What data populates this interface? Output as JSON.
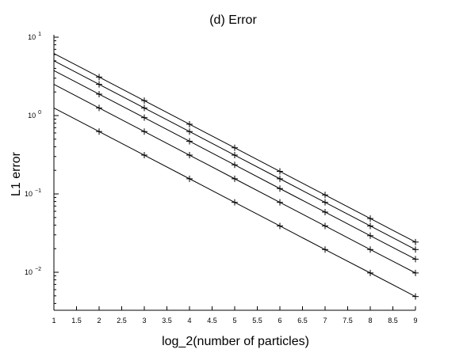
{
  "chart_data": {
    "type": "line",
    "title": "(d) Error",
    "xlabel": "log_2(number of particles)",
    "ylabel": "L1 error",
    "xlim": [
      1,
      9
    ],
    "ylim": [
      0.003,
      10
    ],
    "yscale": "log",
    "grid": false,
    "legend": "none",
    "x_ticks": [
      1,
      1.5,
      2,
      2.5,
      3,
      3.5,
      4,
      4.5,
      5,
      5.5,
      6,
      6.5,
      7,
      7.5,
      8,
      8.5,
      9
    ],
    "x_tick_labels": [
      "1",
      "1.5",
      "2",
      "2.5",
      "3",
      "3.5",
      "4",
      "4.5",
      "5",
      "5.5",
      "6",
      "6.5",
      "7",
      "7.5",
      "8",
      "8.5",
      "9"
    ],
    "y_ticks": [
      {
        "value": 10,
        "base": "10",
        "exp": "1"
      },
      {
        "value": 1,
        "base": "10",
        "exp": "0"
      },
      {
        "value": 0.1,
        "base": "10",
        "exp": "−1"
      },
      {
        "value": 0.01,
        "base": "10",
        "exp": "−2"
      }
    ],
    "x": [
      1,
      2,
      3,
      4,
      5,
      6,
      7,
      8,
      9
    ],
    "series": [
      {
        "values": [
          6.2,
          3.1,
          1.55,
          0.775,
          0.388,
          0.194,
          0.097,
          0.0485,
          0.0243
        ]
      },
      {
        "values": [
          5.0,
          2.5,
          1.25,
          0.625,
          0.3125,
          0.156,
          0.078,
          0.039,
          0.0195
        ]
      },
      {
        "values": [
          3.75,
          1.875,
          0.94,
          0.47,
          0.235,
          0.117,
          0.0586,
          0.0293,
          0.0147
        ]
      },
      {
        "values": [
          2.5,
          1.25,
          0.625,
          0.3125,
          0.156,
          0.078,
          0.039,
          0.0195,
          0.0098
        ]
      },
      {
        "values": [
          1.25,
          0.625,
          0.3125,
          0.156,
          0.078,
          0.039,
          0.0195,
          0.0098,
          0.0049
        ]
      }
    ],
    "marker": "+",
    "line_color": "#000000"
  }
}
